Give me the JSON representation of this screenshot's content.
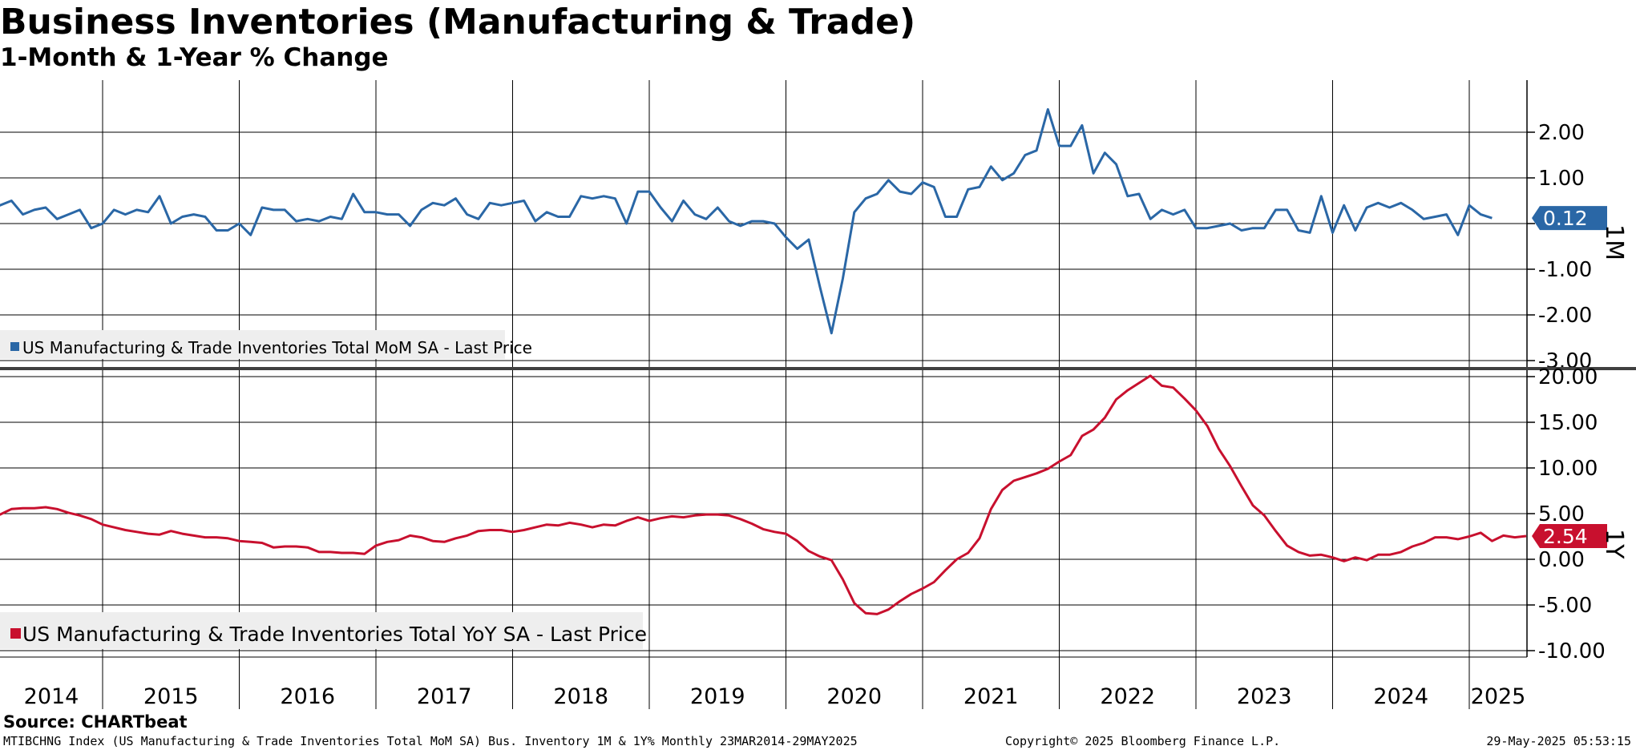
{
  "title": "Business Inventories (Manufacturing & Trade)",
  "subtitle": "1-Month & 1-Year % Change",
  "source": "Source: CHARTbeat",
  "footer": {
    "left": "MTIBCHNG Index (US Manufacturing & Trade Inventories Total MoM SA) Bus. Inventory 1M & 1Y%  Monthly 23MAR2014-29MAY2025",
    "center": "Copyright© 2025 Bloomberg Finance L.P.",
    "right": "29-May-2025 05:53:15"
  },
  "colors": {
    "mom": "#2a67a6",
    "yoy": "#c8102e",
    "grid": "#000000"
  },
  "chart_data": [
    {
      "type": "line",
      "panel": "top",
      "side_label": "1M",
      "legend": "US Manufacturing & Trade Inventories Total MoM SA - Last Price",
      "last_value_label": "0.12",
      "ylim": [
        -3.0,
        3.0
      ],
      "yticks": [
        2.0,
        1.0,
        0.0,
        -1.0,
        -2.0,
        -3.0
      ],
      "ytick_labels": [
        "2.00",
        "1.00",
        "",
        "-1.00",
        "-2.00",
        "-3.00"
      ],
      "x_start": "2014-03",
      "frequency": "monthly",
      "grid": true,
      "series": [
        {
          "values": [
            0.5,
            0.4,
            0.5,
            0.2,
            0.3,
            0.35,
            0.1,
            0.2,
            0.3,
            -0.1,
            0.0,
            0.3,
            0.2,
            0.3,
            0.25,
            0.6,
            0.0,
            0.15,
            0.2,
            0.15,
            -0.15,
            -0.15,
            0.0,
            -0.25,
            0.35,
            0.3,
            0.3,
            0.05,
            0.1,
            0.05,
            0.15,
            0.1,
            0.65,
            0.25,
            0.25,
            0.2,
            0.2,
            -0.05,
            0.3,
            0.45,
            0.4,
            0.55,
            0.2,
            0.1,
            0.45,
            0.4,
            0.45,
            0.5,
            0.05,
            0.25,
            0.15,
            0.15,
            0.6,
            0.55,
            0.6,
            0.55,
            0.0,
            0.7,
            0.7,
            0.35,
            0.05,
            0.5,
            0.2,
            0.1,
            0.35,
            0.05,
            -0.05,
            0.05,
            0.05,
            0.0,
            -0.3,
            -0.55,
            -0.35,
            -1.4,
            -2.4,
            -1.2,
            0.25,
            0.55,
            0.65,
            0.95,
            0.7,
            0.65,
            0.9,
            0.8,
            0.15,
            0.15,
            0.75,
            0.8,
            1.25,
            0.95,
            1.1,
            1.5,
            1.6,
            2.5,
            1.7,
            1.7,
            2.15,
            1.1,
            1.55,
            1.3,
            0.6,
            0.65,
            0.1,
            0.3,
            0.2,
            0.3,
            -0.1,
            -0.1,
            -0.05,
            0.0,
            -0.15,
            -0.1,
            -0.1,
            0.3,
            0.3,
            -0.15,
            -0.2,
            0.6,
            -0.2,
            0.4,
            -0.15,
            0.35,
            0.45,
            0.35,
            0.45,
            0.3,
            0.1,
            0.15,
            0.2,
            -0.25,
            0.4,
            0.2,
            0.12
          ]
        }
      ]
    },
    {
      "type": "line",
      "panel": "bottom",
      "side_label": "1Y",
      "legend": "US Manufacturing & Trade Inventories Total YoY SA - Last Price",
      "last_value_label": "2.54",
      "ylim": [
        -10.0,
        20.0
      ],
      "yticks": [
        20.0,
        15.0,
        10.0,
        5.0,
        0.0,
        -5.0,
        -10.0
      ],
      "ytick_labels": [
        "20.00",
        "15.00",
        "10.00",
        "5.00",
        "0.00",
        "-5.00",
        "-10.00"
      ],
      "x_start": "2014-03",
      "frequency": "monthly",
      "grid": true,
      "series": [
        {
          "values": [
            4.8,
            4.9,
            5.5,
            5.6,
            5.6,
            5.7,
            5.5,
            5.1,
            4.8,
            4.4,
            3.8,
            3.5,
            3.2,
            3.0,
            2.8,
            2.7,
            3.1,
            2.8,
            2.6,
            2.4,
            2.4,
            2.3,
            2.0,
            1.9,
            1.8,
            1.3,
            1.4,
            1.4,
            1.3,
            0.8,
            0.8,
            0.7,
            0.7,
            0.6,
            1.5,
            1.9,
            2.1,
            2.6,
            2.4,
            2.0,
            1.9,
            2.3,
            2.6,
            3.1,
            3.2,
            3.2,
            3.0,
            3.2,
            3.5,
            3.8,
            3.7,
            4.0,
            3.8,
            3.5,
            3.8,
            3.7,
            4.2,
            4.6,
            4.2,
            4.5,
            4.7,
            4.6,
            4.8,
            4.9,
            4.9,
            4.8,
            4.4,
            3.9,
            3.3,
            3.0,
            2.8,
            2.0,
            0.9,
            0.3,
            -0.1,
            -2.2,
            -4.8,
            -5.9,
            -6.0,
            -5.5,
            -4.6,
            -3.8,
            -3.2,
            -2.5,
            -1.2,
            0.0,
            0.7,
            2.3,
            5.5,
            7.6,
            8.6,
            9.0,
            9.4,
            9.9,
            10.7,
            11.4,
            13.5,
            14.2,
            15.5,
            17.5,
            18.5,
            19.3,
            20.1,
            19.0,
            18.8,
            17.6,
            16.3,
            14.6,
            12.1,
            10.2,
            8.0,
            5.9,
            4.8,
            3.1,
            1.5,
            0.8,
            0.4,
            0.5,
            0.2,
            -0.2,
            0.2,
            -0.1,
            0.5,
            0.5,
            0.8,
            1.4,
            1.8,
            2.4,
            2.4,
            2.2,
            2.5,
            2.9,
            2.0,
            2.6,
            2.4,
            2.54
          ]
        }
      ]
    }
  ],
  "x_axis": {
    "years": [
      "2014",
      "2015",
      "2016",
      "2017",
      "2018",
      "2019",
      "2020",
      "2021",
      "2022",
      "2023",
      "2024",
      "2025"
    ]
  }
}
